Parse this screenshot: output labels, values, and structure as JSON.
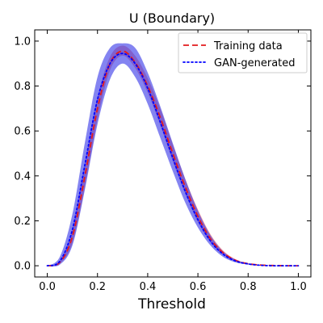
{
  "chart_data": {
    "type": "line",
    "title": "U (Boundary)",
    "xlabel": "Threshold",
    "ylabel": "",
    "xlim": [
      -0.05,
      1.05
    ],
    "ylim": [
      -0.05,
      1.05
    ],
    "xticks": [
      0.0,
      0.2,
      0.4,
      0.6,
      0.8,
      1.0
    ],
    "yticks": [
      0.0,
      0.2,
      0.4,
      0.6,
      0.8,
      1.0
    ],
    "xtick_labels": [
      "0.0",
      "0.2",
      "0.4",
      "0.6",
      "0.8",
      "1.0"
    ],
    "ytick_labels": [
      "0.0",
      "0.2",
      "0.4",
      "0.6",
      "0.8",
      "1.0"
    ],
    "grid": false,
    "legend_position": "top-right",
    "series": [
      {
        "name": "Training data",
        "color": "#e31a1c",
        "band_color": "#f08080",
        "line_style": "dashed",
        "x": [
          0.0,
          0.05,
          0.1,
          0.15,
          0.2,
          0.25,
          0.3,
          0.35,
          0.4,
          0.45,
          0.5,
          0.55,
          0.6,
          0.65,
          0.7,
          0.75,
          0.8,
          0.85,
          0.9,
          0.95,
          1.0
        ],
        "y": [
          0.0,
          0.015,
          0.13,
          0.4,
          0.7,
          0.9,
          0.955,
          0.905,
          0.8,
          0.66,
          0.5,
          0.35,
          0.22,
          0.12,
          0.058,
          0.024,
          0.009,
          0.003,
          0.001,
          0.0,
          0.0
        ],
        "lower": [
          0.0,
          0.01,
          0.1,
          0.35,
          0.65,
          0.87,
          0.935,
          0.88,
          0.77,
          0.625,
          0.465,
          0.32,
          0.195,
          0.105,
          0.05,
          0.02,
          0.007,
          0.002,
          0.0,
          0.0,
          0.0
        ],
        "upper": [
          0.0,
          0.02,
          0.16,
          0.45,
          0.75,
          0.93,
          0.98,
          0.935,
          0.835,
          0.7,
          0.54,
          0.385,
          0.25,
          0.14,
          0.068,
          0.029,
          0.011,
          0.004,
          0.001,
          0.0,
          0.0
        ]
      },
      {
        "name": "GAN-generated",
        "color": "#0000ff",
        "band_color": "#3838e8",
        "line_style": "dotted",
        "x": [
          0.0,
          0.05,
          0.1,
          0.15,
          0.2,
          0.25,
          0.3,
          0.35,
          0.4,
          0.45,
          0.5,
          0.55,
          0.6,
          0.65,
          0.7,
          0.75,
          0.8,
          0.85,
          0.9,
          0.95,
          1.0
        ],
        "y": [
          0.0,
          0.02,
          0.16,
          0.45,
          0.74,
          0.9,
          0.945,
          0.9,
          0.79,
          0.64,
          0.48,
          0.33,
          0.205,
          0.11,
          0.052,
          0.021,
          0.008,
          0.002,
          0.0,
          0.0,
          0.0
        ],
        "lower": [
          0.0,
          0.005,
          0.09,
          0.34,
          0.63,
          0.83,
          0.9,
          0.84,
          0.72,
          0.57,
          0.42,
          0.28,
          0.17,
          0.09,
          0.04,
          0.015,
          0.005,
          0.001,
          0.0,
          0.0,
          0.0
        ],
        "upper": [
          0.0,
          0.04,
          0.23,
          0.55,
          0.84,
          0.97,
          0.99,
          0.97,
          0.86,
          0.71,
          0.545,
          0.385,
          0.245,
          0.135,
          0.064,
          0.027,
          0.01,
          0.003,
          0.001,
          0.0,
          0.0
        ]
      }
    ]
  }
}
